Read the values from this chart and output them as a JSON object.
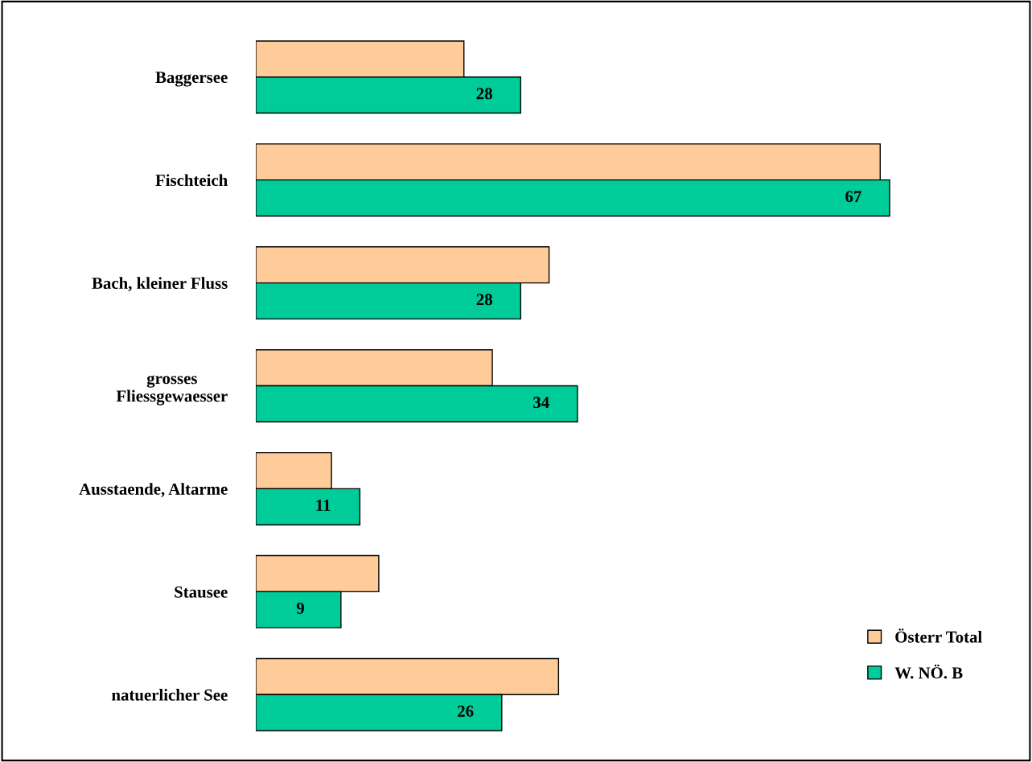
{
  "chart_data": {
    "type": "bar",
    "orientation": "horizontal",
    "categories": [
      "Baggersee",
      "Fischteich",
      "Bach, kleiner Fluss",
      "grosses\nFliessgewaesser",
      "Ausstaende, Altarme",
      "Stausee",
      "natuerlicher See"
    ],
    "series": [
      {
        "name": "Österr Total",
        "color": "#ffcc99",
        "values": [
          22,
          66,
          31,
          25,
          8,
          13,
          32
        ]
      },
      {
        "name": "W. NÖ. B",
        "color": "#00cc99",
        "values": [
          28,
          67,
          28,
          34,
          11,
          9,
          26
        ],
        "value_labels": [
          "28",
          "67",
          "28",
          "34",
          "11",
          "9",
          "26"
        ]
      }
    ],
    "legend": "bottom right",
    "grid": false
  }
}
